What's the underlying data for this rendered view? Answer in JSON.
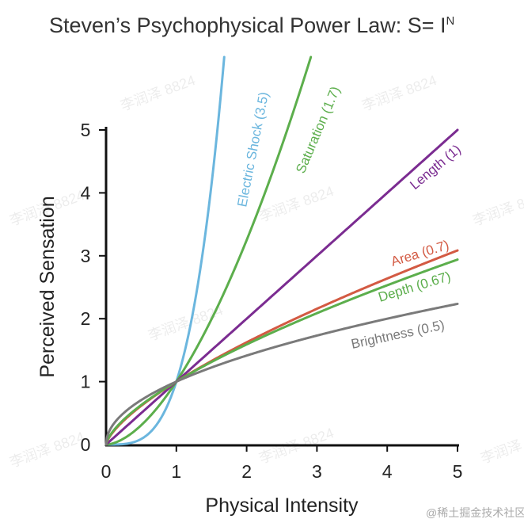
{
  "chart_data": {
    "type": "line",
    "title": "Steven’s Psychophysical Power Law: S= I",
    "title_superscript": "N",
    "xlabel": "Physical Intensity",
    "ylabel": "Perceived Sensation",
    "xlim": [
      0,
      5
    ],
    "ylim": [
      0,
      5
    ],
    "x_ticks": [
      "0",
      "1",
      "2",
      "3",
      "4",
      "5"
    ],
    "y_ticks": [
      "0",
      "1",
      "2",
      "3",
      "4",
      "5"
    ],
    "grid": false,
    "series": [
      {
        "name": "Electric Shock (3.5)",
        "exponent": 3.5,
        "color": "#6bb6de"
      },
      {
        "name": "Saturation (1.7)",
        "exponent": 1.7,
        "color": "#5cae4c"
      },
      {
        "name": "Length (1)",
        "exponent": 1.0,
        "color": "#7b2c91"
      },
      {
        "name": "Area (0.7)",
        "exponent": 0.7,
        "color": "#d35a43"
      },
      {
        "name": "Depth (0.67)",
        "exponent": 0.67,
        "color": "#5cae4c"
      },
      {
        "name": "Brightness (0.5)",
        "exponent": 0.5,
        "color": "#7a7a7a"
      }
    ]
  },
  "watermark_text": "李润泽 8824",
  "credit_text": "@稀土掘金技术社区"
}
